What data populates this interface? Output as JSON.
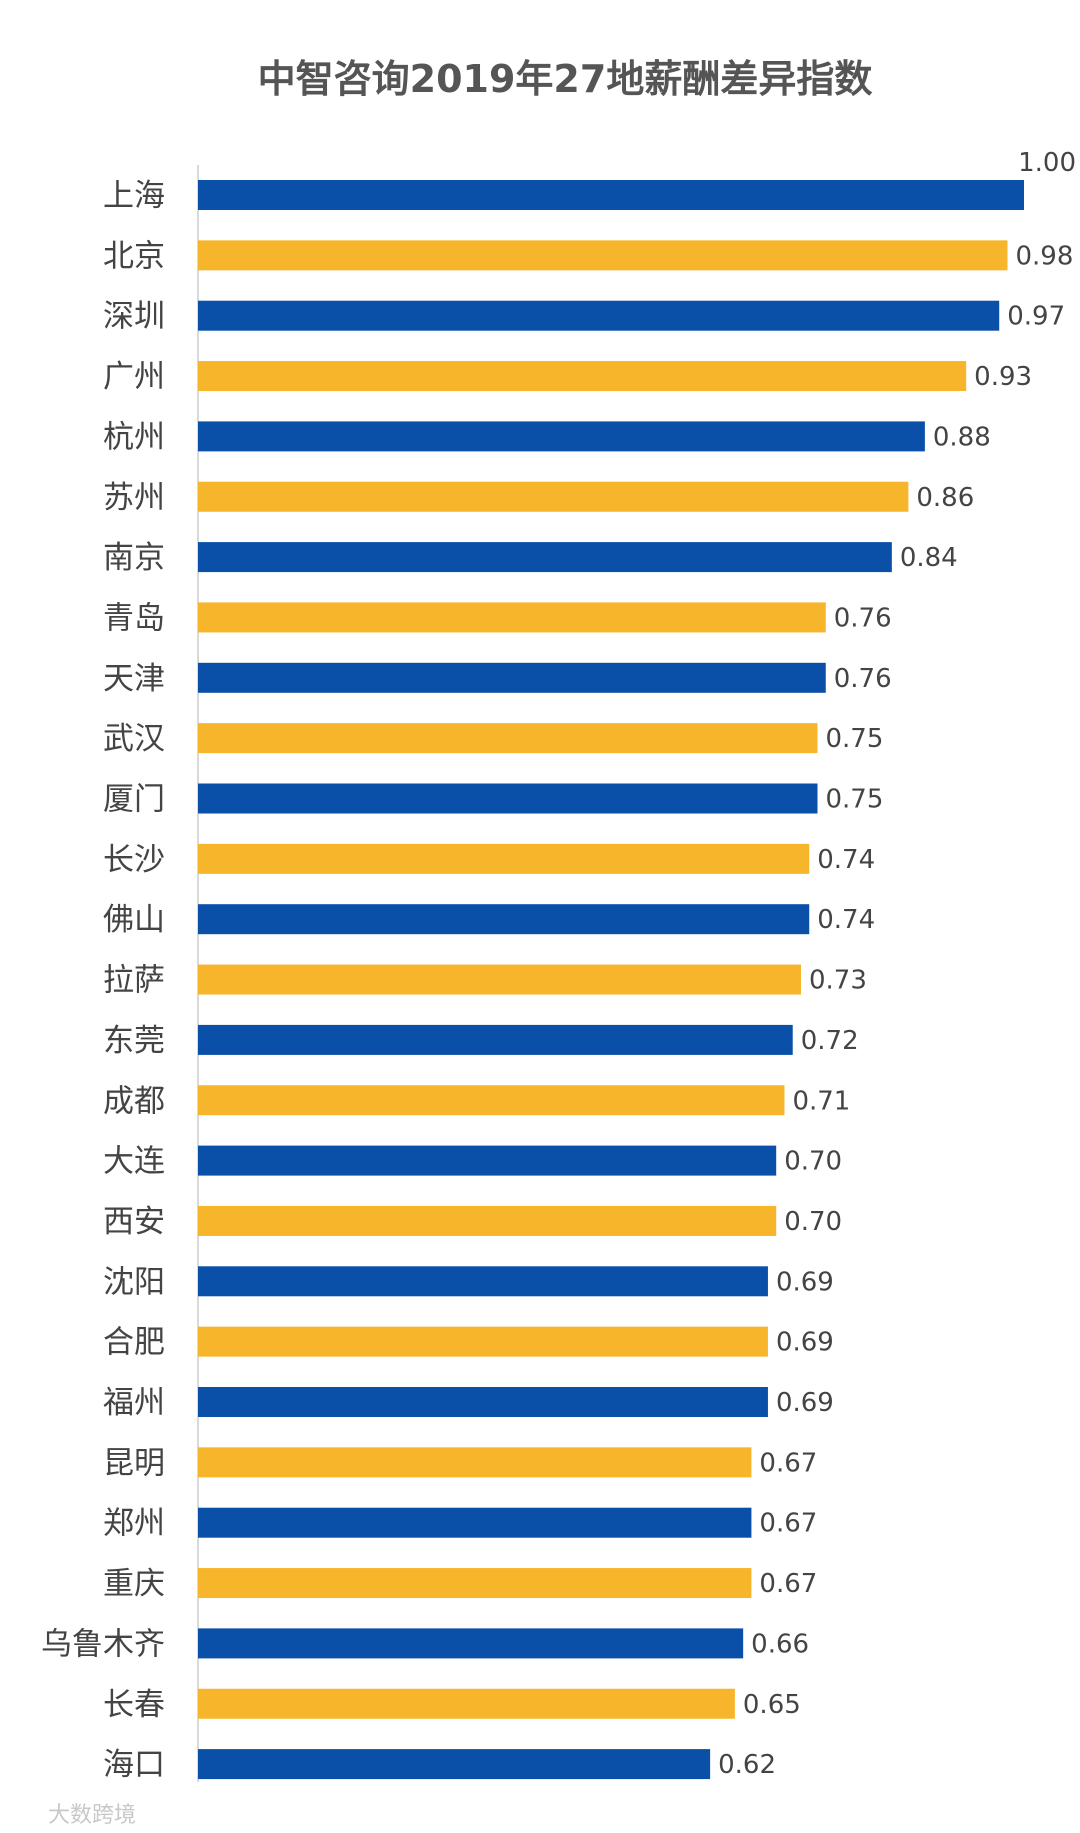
{
  "chart_data": {
    "type": "bar",
    "orientation": "horizontal",
    "title": "中智咨询2019年27地薪酬差异指数",
    "categories": [
      "上海",
      "北京",
      "深圳",
      "广州",
      "杭州",
      "苏州",
      "南京",
      "青岛",
      "天津",
      "武汉",
      "厦门",
      "长沙",
      "佛山",
      "拉萨",
      "东莞",
      "成都",
      "大连",
      "西安",
      "沈阳",
      "合肥",
      "福州",
      "昆明",
      "郑州",
      "重庆",
      "乌鲁木齐",
      "长春",
      "海口"
    ],
    "values": [
      1.0,
      0.98,
      0.97,
      0.93,
      0.88,
      0.86,
      0.84,
      0.76,
      0.76,
      0.75,
      0.75,
      0.74,
      0.74,
      0.73,
      0.72,
      0.71,
      0.7,
      0.7,
      0.69,
      0.69,
      0.69,
      0.67,
      0.67,
      0.67,
      0.66,
      0.65,
      0.62
    ],
    "value_labels": [
      "1.00",
      "0.98",
      "0.97",
      "0.93",
      "0.88",
      "0.86",
      "0.84",
      "0.76",
      "0.76",
      "0.75",
      "0.75",
      "0.74",
      "0.74",
      "0.73",
      "0.72",
      "0.71",
      "0.70",
      "0.70",
      "0.69",
      "0.69",
      "0.69",
      "0.67",
      "0.67",
      "0.67",
      "0.66",
      "0.65",
      "0.62"
    ],
    "xlim": [
      0,
      1.0
    ],
    "grid": false,
    "legend": "none",
    "colors": [
      "#0a4fa8",
      "#f7b52c"
    ]
  },
  "watermark": {
    "text": "大数跨境"
  }
}
